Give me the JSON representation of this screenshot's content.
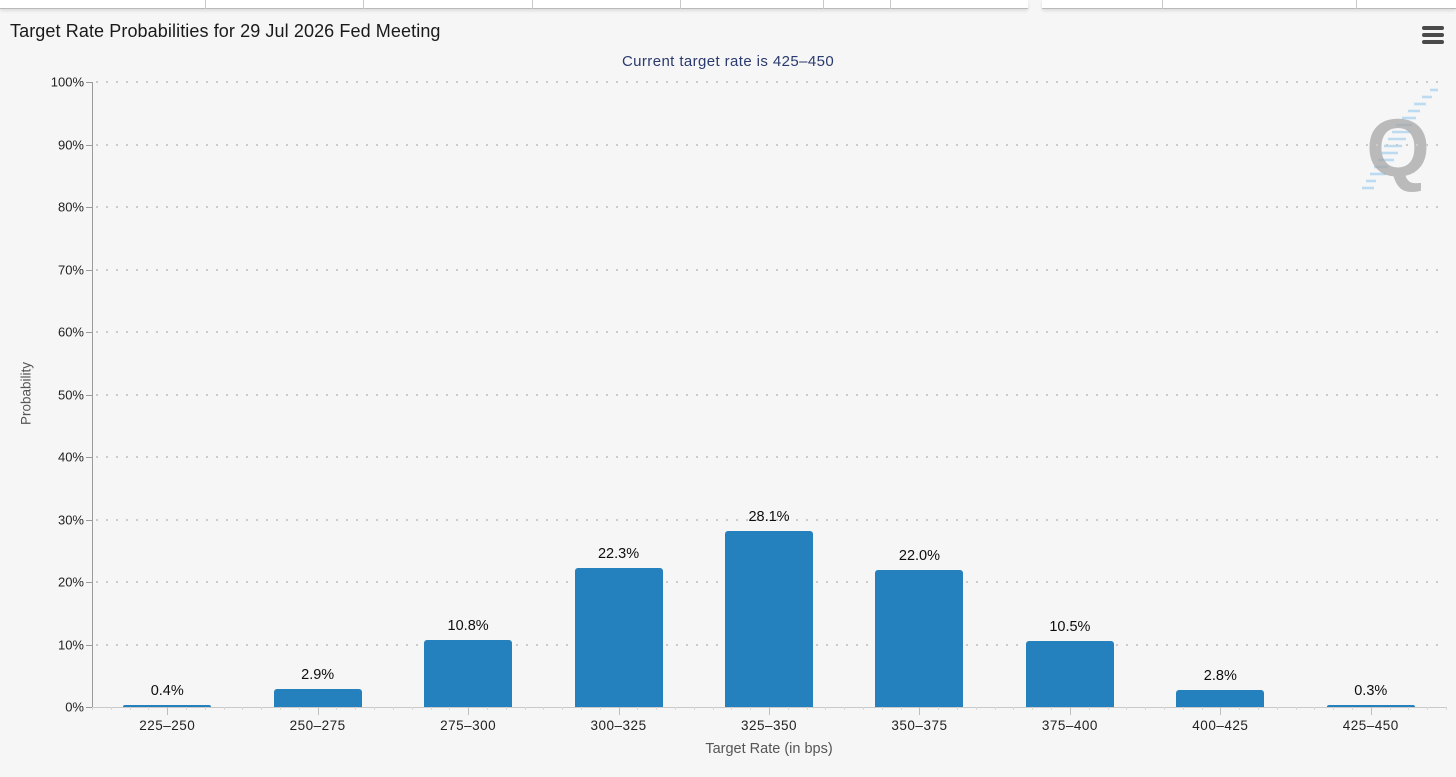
{
  "header": {
    "menu_icon": "hamburger",
    "watermark_letter": "Q"
  },
  "chart_data": {
    "type": "bar",
    "title": "Target Rate Probabilities for 29 Jul 2026 Fed Meeting",
    "subtitle": "Current target rate is 425–450",
    "xlabel": "Target Rate (in bps)",
    "ylabel": "Probability",
    "categories": [
      "225–250",
      "250–275",
      "275–300",
      "300–325",
      "325–350",
      "350–375",
      "375–400",
      "400–425",
      "425–450"
    ],
    "values": [
      0.4,
      2.9,
      10.8,
      22.3,
      28.1,
      22.0,
      10.5,
      2.8,
      0.3
    ],
    "value_labels": [
      "0.4%",
      "2.9%",
      "10.8%",
      "22.3%",
      "28.1%",
      "22.0%",
      "10.5%",
      "2.8%",
      "0.3%"
    ],
    "ytick_values": [
      0,
      10,
      20,
      30,
      40,
      50,
      60,
      70,
      80,
      90,
      100
    ],
    "ytick_labels": [
      "0%",
      "10%",
      "20%",
      "30%",
      "40%",
      "50%",
      "60%",
      "70%",
      "80%",
      "90%",
      "100%"
    ],
    "ylim": [
      0,
      100
    ],
    "grid": "dotted-horizontal",
    "legend": "none",
    "bar_color": "#2481BD",
    "subtitle_color": "#2b3a6e"
  }
}
